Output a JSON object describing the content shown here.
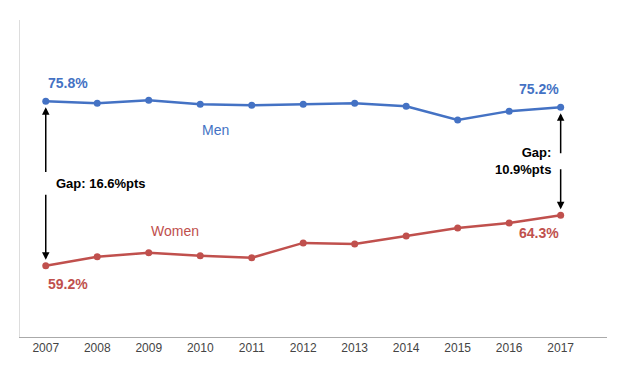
{
  "chart_data": {
    "type": "line",
    "x": [
      2007,
      2008,
      2009,
      2010,
      2011,
      2012,
      2013,
      2014,
      2015,
      2016,
      2017
    ],
    "series": [
      {
        "name": "Men",
        "color": "#4472C4",
        "values": [
          75.8,
          75.6,
          75.9,
          75.5,
          75.4,
          75.5,
          75.6,
          75.3,
          73.9,
          74.8,
          75.2
        ],
        "value_labels": [
          "75.8%",
          null,
          null,
          null,
          null,
          null,
          null,
          null,
          null,
          null,
          "75.2%"
        ]
      },
      {
        "name": "Women",
        "color": "#C0504D",
        "values": [
          59.2,
          60.1,
          60.5,
          60.2,
          60.0,
          61.5,
          61.4,
          62.2,
          63.0,
          63.5,
          64.3
        ],
        "value_labels": [
          "59.2%",
          null,
          null,
          null,
          null,
          null,
          null,
          null,
          null,
          null,
          "64.3%"
        ]
      }
    ],
    "annotations": [
      "Gap: 16.6%pts",
      "Gap:\n10.9%pts"
    ],
    "xlim": [
      2006.5,
      2017.9
    ],
    "xticks": [
      2007,
      2008,
      2009,
      2010,
      2011,
      2012,
      2013,
      2014,
      2015,
      2016,
      2017
    ],
    "ylim": [
      52,
      84
    ],
    "tick_labels": "x",
    "grid": false,
    "marker": "circle"
  }
}
